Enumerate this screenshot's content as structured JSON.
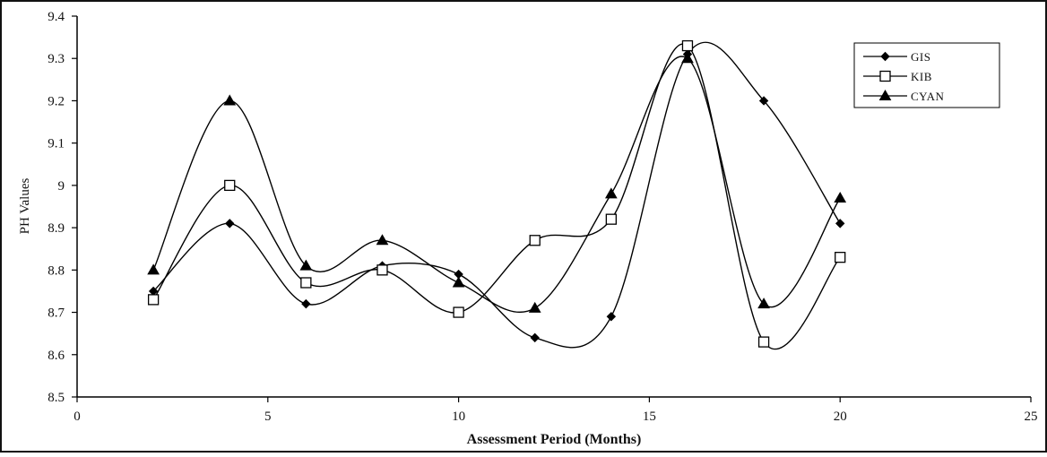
{
  "chart_data": {
    "type": "line",
    "smooth": true,
    "title": "",
    "xlabel": "Assessment Period (Months)",
    "ylabel": "PH Values",
    "xlim": [
      0,
      25
    ],
    "ylim": [
      8.5,
      9.4
    ],
    "xticks": [
      0,
      5,
      10,
      15,
      20,
      25
    ],
    "yticks": [
      8.5,
      8.6,
      8.7,
      8.8,
      8.9,
      9.0,
      9.1,
      9.2,
      9.3,
      9.4
    ],
    "xtick_labels": [
      "0",
      "5",
      "10",
      "15",
      "20",
      "25"
    ],
    "ytick_labels": [
      "8.5",
      "8.6",
      "8.7",
      "8.8",
      "8.9",
      "9",
      "9.1",
      "9.2",
      "9.3",
      "9.4"
    ],
    "grid": false,
    "legend_position": "top-right",
    "x": [
      2,
      4,
      6,
      8,
      10,
      12,
      14,
      16,
      18,
      20
    ],
    "series": [
      {
        "name": "GIS",
        "marker": "filled-diamond",
        "color": "#000000",
        "values": [
          8.75,
          8.91,
          8.72,
          8.81,
          8.79,
          8.64,
          8.69,
          9.31,
          9.2,
          8.91
        ]
      },
      {
        "name": "KIB",
        "marker": "open-square",
        "color": "#000000",
        "values": [
          8.73,
          9.0,
          8.77,
          8.8,
          8.7,
          8.87,
          8.92,
          9.33,
          8.63,
          8.83
        ]
      },
      {
        "name": "CYAN",
        "marker": "filled-triangle",
        "color": "#000000",
        "values": [
          8.8,
          9.2,
          8.81,
          8.87,
          8.77,
          8.71,
          8.98,
          9.3,
          8.72,
          8.97
        ]
      }
    ]
  }
}
